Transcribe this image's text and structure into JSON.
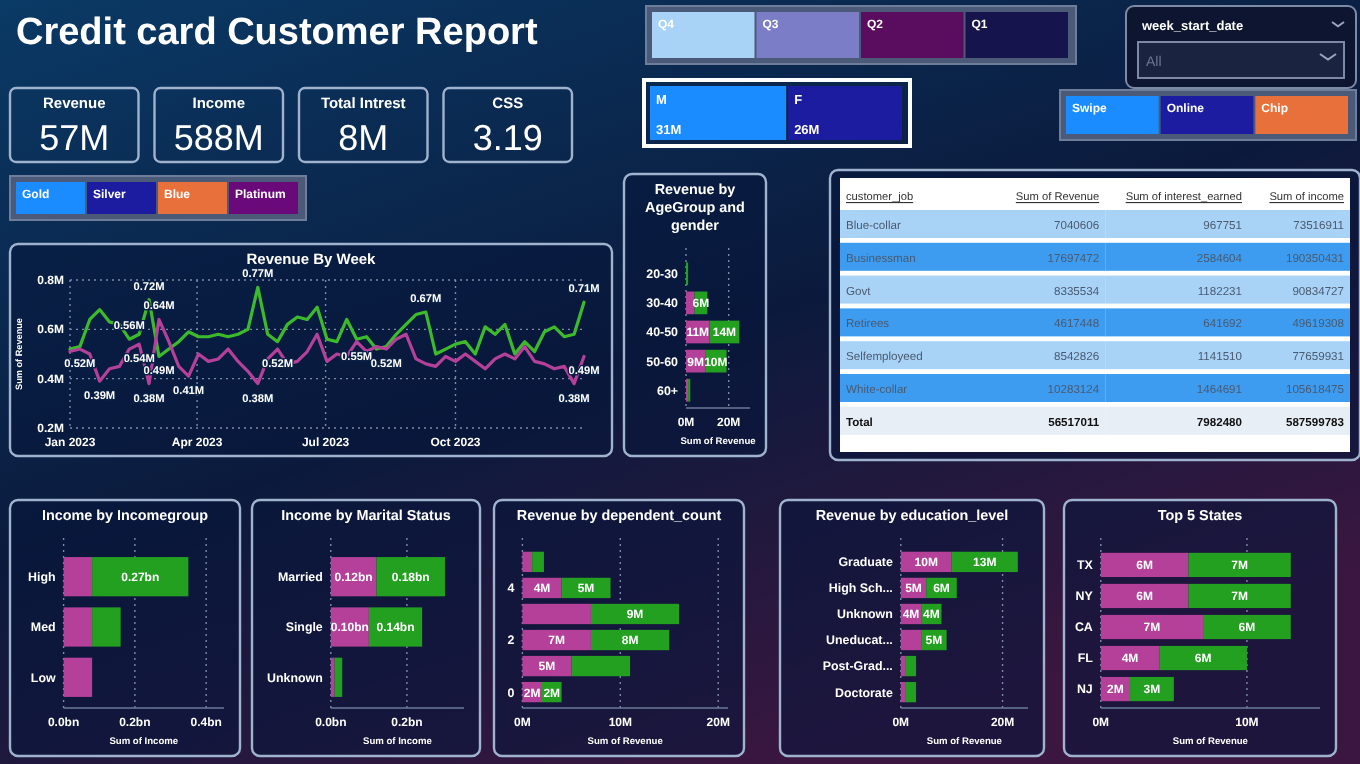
{
  "chart_data": [
    {
      "type": "other",
      "title": "Credit card Customer Report",
      "categories": [
        "Revenue",
        "Income",
        "Total Intrest",
        "CSS"
      ],
      "value_labels": [
        "57M",
        "588M",
        "8M",
        "3.19"
      ]
    },
    {
      "type": "other",
      "categories": [
        "Q4",
        "Q3",
        "Q2",
        "Q1"
      ],
      "colors": [
        "#a9d2f7",
        "#7b7ec6",
        "#5a0c5e",
        "#15144c"
      ]
    },
    {
      "type": "other",
      "title": "week_start_date",
      "annotations": [
        "All"
      ]
    },
    {
      "type": "other",
      "categories": [
        "M",
        "F"
      ],
      "values": [
        31,
        26
      ],
      "value_labels": [
        "31M",
        "26M"
      ],
      "colors": [
        "#1a8cff",
        "#1c1ca0"
      ]
    },
    {
      "type": "other",
      "categories": [
        "Swipe",
        "Online",
        "Chip"
      ],
      "colors": [
        "#1a8cff",
        "#1c1ca0",
        "#e8703a"
      ]
    },
    {
      "type": "other",
      "categories": [
        "Gold",
        "Silver",
        "Blue",
        "Platinum"
      ],
      "colors": [
        "#1a8cff",
        "#1c1ca0",
        "#e8703a",
        "#6a0a7a"
      ]
    },
    {
      "type": "line",
      "title": "Revenue By Week",
      "ylabel": "Sum of Revenue",
      "grid": true,
      "x": [
        "2023-01-01",
        "2023-01-08",
        "2023-01-15",
        "2023-01-22",
        "2023-01-29",
        "2023-02-05",
        "2023-02-12",
        "2023-02-19",
        "2023-02-26",
        "2023-03-05",
        "2023-03-12",
        "2023-03-19",
        "2023-03-26",
        "2023-04-02",
        "2023-04-09",
        "2023-04-16",
        "2023-04-23",
        "2023-04-30",
        "2023-05-07",
        "2023-05-14",
        "2023-05-21",
        "2023-05-28",
        "2023-06-04",
        "2023-06-11",
        "2023-06-18",
        "2023-06-25",
        "2023-07-02",
        "2023-07-09",
        "2023-07-16",
        "2023-07-23",
        "2023-07-30",
        "2023-08-06",
        "2023-08-13",
        "2023-08-20",
        "2023-08-27",
        "2023-09-03",
        "2023-09-10",
        "2023-09-17",
        "2023-09-24",
        "2023-10-01",
        "2023-10-08",
        "2023-10-15",
        "2023-10-22",
        "2023-10-29",
        "2023-11-05",
        "2023-11-12",
        "2023-11-19",
        "2023-11-26",
        "2023-12-03",
        "2023-12-10",
        "2023-12-17",
        "2023-12-24",
        "2023-12-31"
      ],
      "xlim": [
        "2023-01-01",
        "2023-12-31"
      ],
      "xticks": [
        {
          "value": "2023-01",
          "label": "Jan 2023"
        },
        {
          "value": "2023-04",
          "label": "Apr 2023"
        },
        {
          "value": "2023-07",
          "label": "Jul 2023"
        },
        {
          "value": "2023-10",
          "label": "Oct 2023"
        }
      ],
      "ylim": [
        0.2,
        0.8
      ],
      "yticks": [
        {
          "value": 0.2,
          "label": "0.2M"
        },
        {
          "value": 0.4,
          "label": "0.4M"
        },
        {
          "value": 0.6,
          "label": "0.6M"
        },
        {
          "value": 0.8,
          "label": "0.8M"
        }
      ],
      "series": [
        {
          "color": "#3cba2c",
          "values": [
            0.52,
            0.53,
            0.64,
            0.68,
            0.63,
            0.62,
            0.56,
            0.58,
            0.72,
            0.49,
            0.52,
            0.55,
            0.59,
            0.57,
            0.57,
            0.58,
            0.57,
            0.58,
            0.6,
            0.77,
            0.58,
            0.55,
            0.62,
            0.65,
            0.64,
            0.69,
            0.56,
            0.55,
            0.64,
            0.56,
            0.57,
            0.52,
            0.53,
            0.58,
            0.62,
            0.66,
            0.67,
            0.5,
            0.52,
            0.54,
            0.55,
            0.5,
            0.61,
            0.58,
            0.62,
            0.5,
            0.55,
            0.51,
            0.59,
            0.61,
            0.57,
            0.58,
            0.71
          ],
          "value_labels": [
            null,
            null,
            null,
            null,
            null,
            null,
            "0.56M",
            null,
            "0.72M",
            "0.49M",
            null,
            null,
            null,
            null,
            null,
            null,
            null,
            null,
            null,
            "0.77M",
            null,
            null,
            null,
            null,
            null,
            null,
            null,
            null,
            null,
            null,
            null,
            null,
            null,
            null,
            null,
            null,
            "0.67M",
            null,
            null,
            null,
            null,
            null,
            null,
            null,
            null,
            null,
            null,
            null,
            null,
            null,
            null,
            null,
            "0.71M"
          ]
        },
        {
          "color": "#b4409a",
          "values": [
            0.51,
            0.52,
            0.5,
            0.39,
            0.44,
            0.45,
            0.52,
            0.54,
            0.38,
            0.64,
            0.55,
            0.45,
            0.41,
            0.5,
            0.47,
            0.48,
            0.52,
            0.47,
            0.43,
            0.38,
            0.48,
            0.52,
            0.46,
            0.47,
            0.51,
            0.58,
            0.47,
            0.5,
            0.49,
            0.55,
            0.51,
            0.53,
            0.52,
            0.56,
            0.58,
            0.48,
            0.46,
            0.45,
            0.49,
            0.47,
            0.5,
            0.47,
            0.44,
            0.48,
            0.5,
            0.48,
            0.53,
            0.47,
            0.46,
            0.44,
            0.45,
            0.38,
            0.49
          ],
          "value_labels": [
            null,
            "0.52M",
            null,
            "0.39M",
            null,
            null,
            null,
            "0.54M",
            "0.38M",
            "0.64M",
            null,
            null,
            "0.41M",
            null,
            null,
            null,
            null,
            null,
            null,
            "0.38M",
            null,
            "0.52M",
            null,
            null,
            null,
            null,
            null,
            null,
            null,
            "0.55M",
            null,
            null,
            "0.52M",
            null,
            null,
            null,
            null,
            null,
            null,
            null,
            null,
            null,
            null,
            null,
            null,
            null,
            null,
            null,
            null,
            null,
            null,
            "0.38M",
            "0.49M"
          ]
        }
      ]
    },
    {
      "type": "bar",
      "orientation": "horizontal",
      "stacked": true,
      "title": "Revenue by AgeGroup and gender",
      "xlabel": "Sum of Revenue",
      "grid": "x",
      "categories": [
        "20-30",
        "30-40",
        "40-50",
        "50-60",
        "60+"
      ],
      "xlim": [
        0,
        30
      ],
      "xticks": [
        {
          "value": 0,
          "label": "0M"
        },
        {
          "value": 20,
          "label": "20M"
        }
      ],
      "series": [
        {
          "color": "#b4409a",
          "values": [
            null,
            4,
            11,
            9,
            1
          ],
          "value_labels": [
            null,
            null,
            "11M",
            "9M",
            null
          ]
        },
        {
          "color": "#23a020",
          "values": [
            1,
            6,
            14,
            10,
            1
          ],
          "value_labels": [
            null,
            "6M",
            "14M",
            "10M",
            null
          ]
        }
      ]
    },
    {
      "type": "other",
      "xlabel": "customer_job",
      "data_labels": true,
      "categories": [
        "Blue-collar",
        "Businessman",
        "Govt",
        "Retirees",
        "Selfemployeed",
        "White-collar",
        "Total"
      ],
      "series": [
        {
          "name": "Sum of Revenue",
          "colors": [
            "#a9d2f7",
            "#3d9cf0",
            "#a9d2f7",
            "#3d9cf0",
            "#a9d2f7",
            "#3d9cf0",
            "#e8eef6"
          ],
          "values": [
            7040606,
            17697472,
            8335534,
            4617448,
            8542826,
            10283124,
            56517011
          ]
        },
        {
          "name": "Sum of interest_earned",
          "colors": [
            "#a9d2f7",
            "#3d9cf0",
            "#a9d2f7",
            "#3d9cf0",
            "#a9d2f7",
            "#3d9cf0",
            "#e8eef6"
          ],
          "values": [
            967751,
            2584604,
            1182231,
            641692,
            1141510,
            1464691,
            7982480
          ]
        },
        {
          "name": "Sum of income",
          "colors": [
            "#a9d2f7",
            "#3d9cf0",
            "#a9d2f7",
            "#3d9cf0",
            "#a9d2f7",
            "#3d9cf0",
            "#e8eef6"
          ],
          "values": [
            73516911,
            190350431,
            90834727,
            49619308,
            77659931,
            105618475,
            587599783
          ]
        }
      ]
    },
    {
      "type": "bar",
      "orientation": "horizontal",
      "stacked": true,
      "title": "Income by Incomegroup",
      "xlabel": "Sum of Income",
      "grid": "x",
      "categories": [
        "High",
        "Med",
        "Low"
      ],
      "xlim": [
        0,
        0.45
      ],
      "xticks": [
        {
          "value": 0,
          "label": "0.0bn"
        },
        {
          "value": 0.2,
          "label": "0.2bn"
        },
        {
          "value": 0.4,
          "label": "0.4bn"
        }
      ],
      "series": [
        {
          "color": "#b4409a",
          "values": [
            0.08,
            0.08,
            0.08
          ]
        },
        {
          "color": "#23a020",
          "values": [
            0.27,
            0.08,
            null
          ],
          "value_labels": [
            "0.27bn",
            null,
            null
          ]
        }
      ]
    },
    {
      "type": "bar",
      "orientation": "horizontal",
      "stacked": true,
      "title": "Income by Marital Status",
      "xlabel": "Sum of Income",
      "grid": "x",
      "categories": [
        "Married",
        "Single",
        "Unknown"
      ],
      "xlim": [
        0,
        0.35
      ],
      "xticks": [
        {
          "value": 0,
          "label": "0.0bn"
        },
        {
          "value": 0.2,
          "label": "0.2bn"
        }
      ],
      "series": [
        {
          "color": "#b4409a",
          "values": [
            0.12,
            0.1,
            0.01
          ],
          "value_labels": [
            "0.12bn",
            "0.10bn",
            null
          ]
        },
        {
          "color": "#23a020",
          "values": [
            0.18,
            0.14,
            0.02
          ],
          "value_labels": [
            "0.18bn",
            "0.14bn",
            null
          ]
        }
      ]
    },
    {
      "type": "bar",
      "orientation": "horizontal",
      "stacked": true,
      "title": "Revenue by dependent_count",
      "xlabel": "Sum of Revenue",
      "grid": "x",
      "categories": [
        null,
        "4",
        null,
        "2",
        null,
        "0"
      ],
      "xlim": [
        0,
        21
      ],
      "xticks": [
        {
          "value": 0,
          "label": "0M"
        },
        {
          "value": 10,
          "label": "10M"
        },
        {
          "value": 20,
          "label": "20M"
        }
      ],
      "series": [
        {
          "color": "#b4409a",
          "values": [
            1,
            4,
            7,
            7,
            5,
            2
          ],
          "value_labels": [
            null,
            "4M",
            null,
            "7M",
            "5M",
            "2M"
          ]
        },
        {
          "color": "#23a020",
          "values": [
            1.2,
            5,
            9,
            8,
            6,
            2
          ],
          "value_labels": [
            null,
            "5M",
            "9M",
            "8M",
            null,
            "2M"
          ]
        }
      ]
    },
    {
      "type": "bar",
      "orientation": "horizontal",
      "stacked": true,
      "title": "Revenue by education_level",
      "xlabel": "Sum of Revenue",
      "grid": "x",
      "categories": [
        "Graduate",
        "High Sch...",
        "Unknown",
        "Uneducat...",
        "Post-Grad...",
        "Doctorate"
      ],
      "xlim": [
        0,
        25
      ],
      "xticks": [
        {
          "value": 0,
          "label": "0M"
        },
        {
          "value": 20,
          "label": "20M"
        }
      ],
      "series": [
        {
          "color": "#b4409a",
          "values": [
            10,
            5,
            4,
            4,
            1,
            1
          ],
          "value_labels": [
            "10M",
            "5M",
            "4M",
            null,
            null,
            null
          ]
        },
        {
          "color": "#23a020",
          "values": [
            13,
            6,
            4,
            5,
            2,
            2
          ],
          "value_labels": [
            "13M",
            "6M",
            "4M",
            "5M",
            null,
            null
          ]
        }
      ]
    },
    {
      "type": "bar",
      "orientation": "horizontal",
      "stacked": true,
      "title": "Top 5 States",
      "xlabel": "Sum of Revenue",
      "grid": "x",
      "categories": [
        "TX",
        "NY",
        "CA",
        "FL",
        "NJ"
      ],
      "xlim": [
        0,
        15
      ],
      "xticks": [
        {
          "value": 0,
          "label": "0M"
        },
        {
          "value": 10,
          "label": "10M"
        }
      ],
      "series": [
        {
          "color": "#b4409a",
          "values": [
            6,
            6,
            7,
            4,
            2
          ],
          "value_labels": [
            "6M",
            "6M",
            "7M",
            "4M",
            "2M"
          ]
        },
        {
          "color": "#23a020",
          "values": [
            7,
            7,
            6,
            6,
            3
          ],
          "value_labels": [
            "7M",
            "7M",
            "6M",
            "6M",
            "3M"
          ]
        }
      ]
    }
  ]
}
